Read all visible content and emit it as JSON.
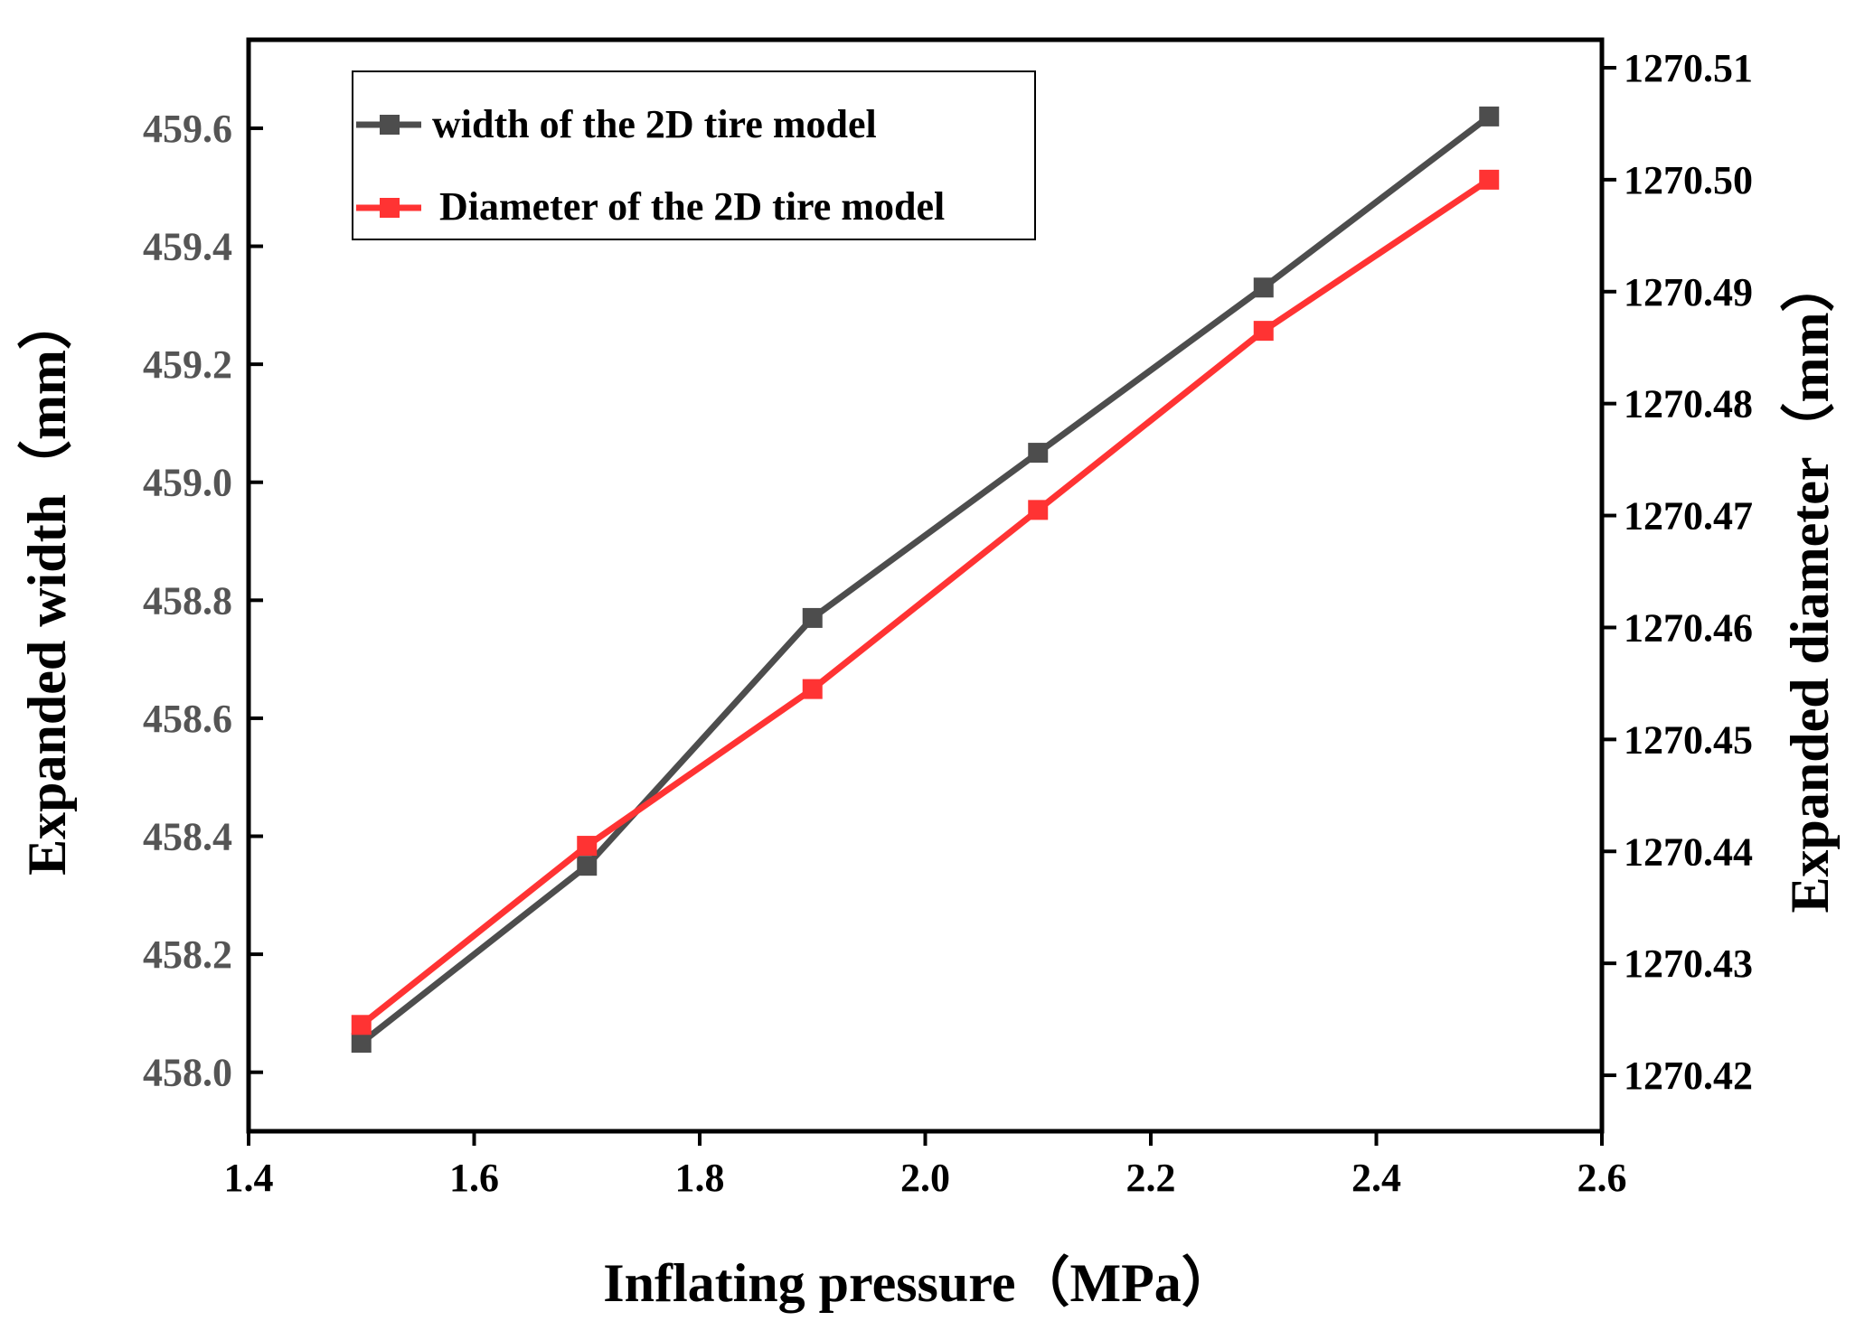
{
  "chart_data": {
    "type": "line",
    "xlabel": "Inflating pressure（MPa）",
    "ylabel_left": "Expanded width（mm）",
    "ylabel_right": "Expanded diameter（mm）",
    "xlim": [
      1.4,
      2.6
    ],
    "ylim_left": [
      457.9,
      459.75
    ],
    "ylim_right": [
      1270.415,
      1270.5125
    ],
    "x_ticks": [
      "1.4",
      "1.6",
      "1.8",
      "2.0",
      "2.2",
      "2.4",
      "2.6"
    ],
    "x_tick_values": [
      1.4,
      1.6,
      1.8,
      2.0,
      2.2,
      2.4,
      2.6
    ],
    "y_left_ticks": [
      "458.0",
      "458.2",
      "458.4",
      "458.6",
      "458.8",
      "459.0",
      "459.2",
      "459.4",
      "459.6"
    ],
    "y_left_tick_values": [
      458.0,
      458.2,
      458.4,
      458.6,
      458.8,
      459.0,
      459.2,
      459.4,
      459.6
    ],
    "y_right_ticks": [
      "1270.42",
      "1270.43",
      "1270.44",
      "1270.45",
      "1270.46",
      "1270.47",
      "1270.48",
      "1270.49",
      "1270.50",
      "1270.51"
    ],
    "y_right_tick_values": [
      1270.42,
      1270.43,
      1270.44,
      1270.45,
      1270.46,
      1270.47,
      1270.48,
      1270.49,
      1270.5,
      1270.51
    ],
    "x": [
      1.5,
      1.7,
      1.9,
      2.1,
      2.3,
      2.5
    ],
    "series": [
      {
        "name": "width of the 2D tire model",
        "axis": "left",
        "color": "#4d4d4d",
        "values": [
          458.05,
          458.35,
          458.77,
          459.05,
          459.33,
          459.62
        ]
      },
      {
        "name": "Diameter of the 2D tire model",
        "axis": "right",
        "color": "#ff3333",
        "values": [
          1270.4245,
          1270.4405,
          1270.4545,
          1270.4705,
          1270.4865,
          1270.5
        ]
      }
    ],
    "legend_position": "top-left"
  }
}
